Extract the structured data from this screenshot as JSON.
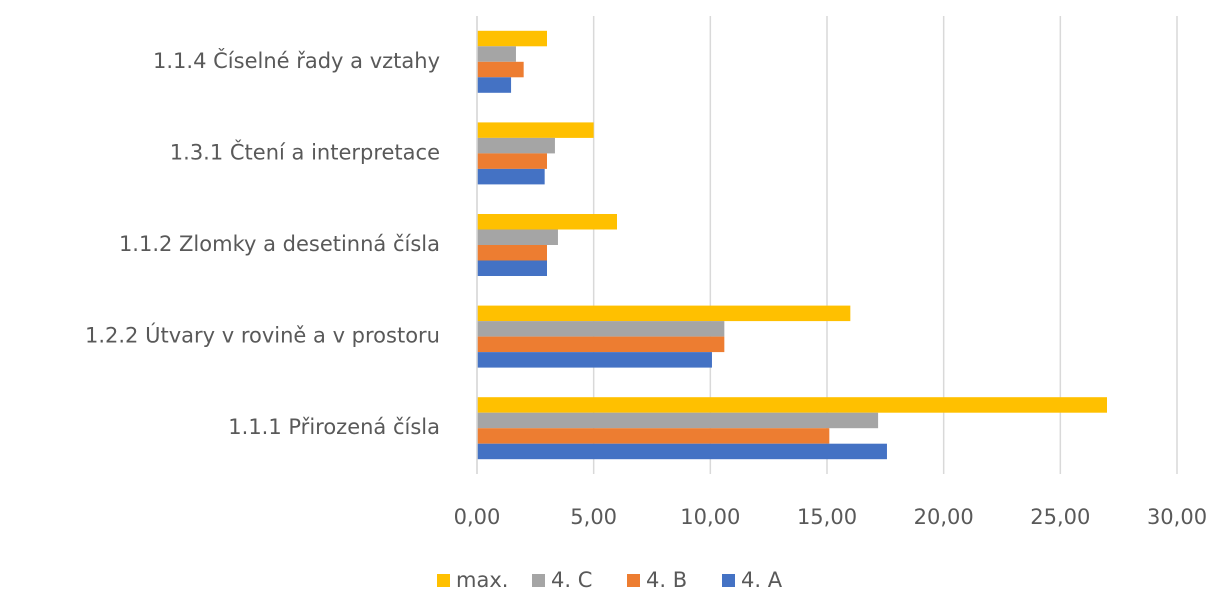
{
  "chart_data": {
    "type": "bar",
    "orientation": "horizontal",
    "categories": [
      "1.1.4 Číselné řady a vztahy",
      "1.3.1 Čtení a interpretace",
      "1.1.2 Zlomky a desetinná čísla",
      "1.2.2 Útvary v rovině a v prostoru",
      "1.1.1 Přirozená čísla"
    ],
    "series": [
      {
        "name": "max.",
        "color": "#ffc000",
        "values": [
          3,
          5,
          6,
          16,
          27
        ]
      },
      {
        "name": "4. C",
        "color": "#a5a5a5",
        "values": [
          1.67,
          3.34,
          3.47,
          10.6,
          17.19
        ]
      },
      {
        "name": "4. B",
        "color": "#ed7d31",
        "values": [
          2.0,
          3.0,
          3.0,
          10.6,
          15.1
        ]
      },
      {
        "name": "4. A",
        "color": "#4472c4",
        "values": [
          1.46,
          2.9,
          3.0,
          10.07,
          17.57
        ]
      }
    ],
    "xlim": [
      0,
      30
    ],
    "xticks": [
      {
        "value": 0,
        "label": "0,00"
      },
      {
        "value": 5,
        "label": "5,00"
      },
      {
        "value": 10,
        "label": "10,00"
      },
      {
        "value": 15,
        "label": "15,00"
      },
      {
        "value": 20,
        "label": "20,00"
      },
      {
        "value": 25,
        "label": "25,00"
      },
      {
        "value": 30,
        "label": "30,00"
      }
    ],
    "grid": true,
    "legend": "bottom"
  }
}
